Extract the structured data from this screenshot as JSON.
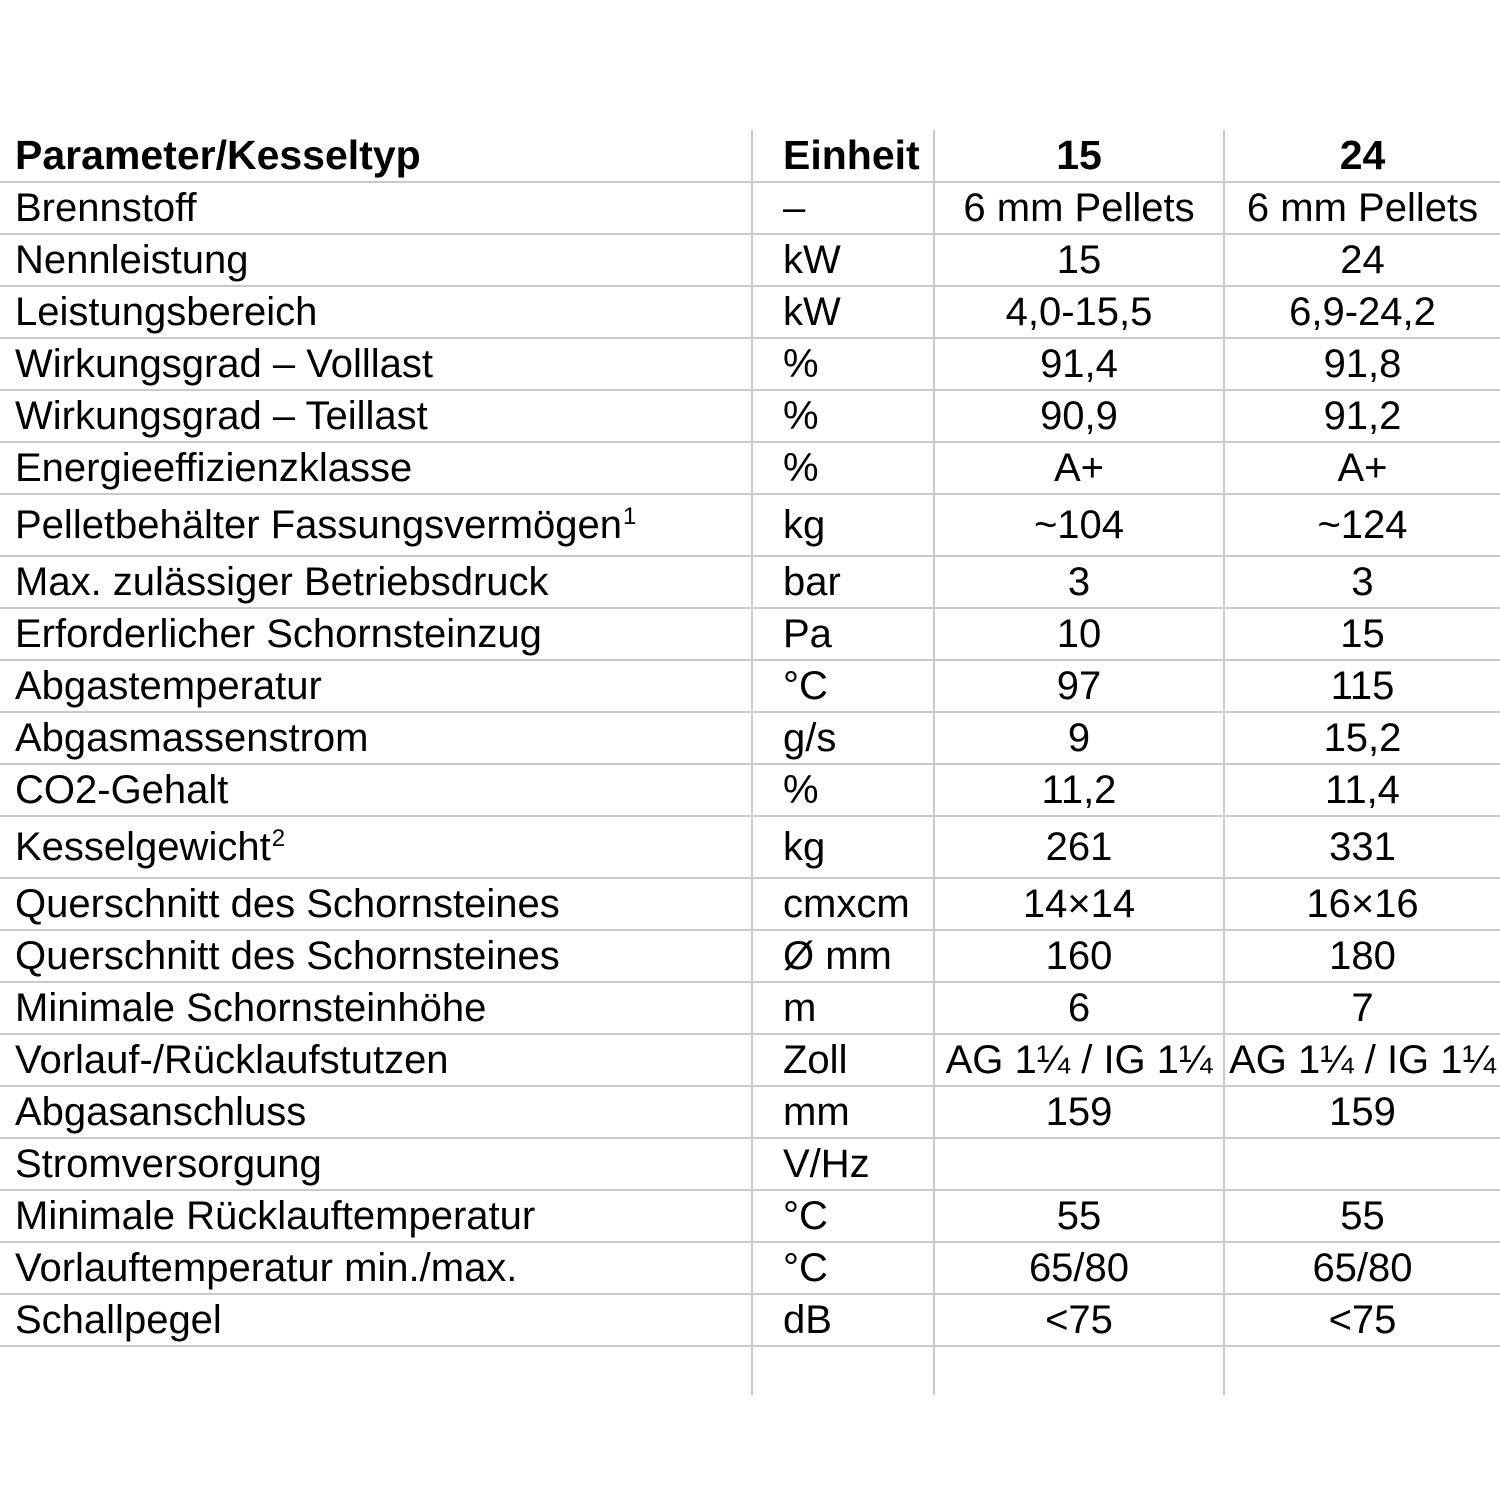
{
  "table": {
    "header": {
      "parameter": "Parameter/Kesseltyp",
      "unit": "Einheit",
      "model_15": "15",
      "model_24": "24"
    },
    "rows": [
      {
        "label": "Brennstoff",
        "sup": "",
        "unit": "–",
        "v15": "6 mm Pellets",
        "v24": "6 mm Pellets",
        "tall": false
      },
      {
        "label": "Nennleistung",
        "sup": "",
        "unit": "kW",
        "v15": "15",
        "v24": "24",
        "tall": false
      },
      {
        "label": "Leistungsbereich",
        "sup": "",
        "unit": "kW",
        "v15": "4,0-15,5",
        "v24": "6,9-24,2",
        "tall": false
      },
      {
        "label": "Wirkungsgrad – Volllast",
        "sup": "",
        "unit": "%",
        "v15": "91,4",
        "v24": "91,8",
        "tall": false
      },
      {
        "label": "Wirkungsgrad – Teillast",
        "sup": "",
        "unit": "%",
        "v15": "90,9",
        "v24": "91,2",
        "tall": false
      },
      {
        "label": "Energieeffizienzklasse",
        "sup": "",
        "unit": "%",
        "v15": "A+",
        "v24": "A+",
        "tall": false
      },
      {
        "label": "Pelletbehälter Fassungsvermögen",
        "sup": "1",
        "unit": "kg",
        "v15": "~104",
        "v24": "~124",
        "tall": true
      },
      {
        "label": "Max. zulässiger Betriebsdruck",
        "sup": "",
        "unit": "bar",
        "v15": "3",
        "v24": "3",
        "tall": false
      },
      {
        "label": "Erforderlicher Schornsteinzug",
        "sup": "",
        "unit": "Pa",
        "v15": "10",
        "v24": "15",
        "tall": false
      },
      {
        "label": "Abgastemperatur",
        "sup": "",
        "unit": "°C",
        "v15": "97",
        "v24": "115",
        "tall": false
      },
      {
        "label": "Abgasmassenstrom",
        "sup": "",
        "unit": "g/s",
        "v15": "9",
        "v24": "15,2",
        "tall": false
      },
      {
        "label": "CO2-Gehalt",
        "sup": "",
        "unit": "%",
        "v15": "11,2",
        "v24": "11,4",
        "tall": false
      },
      {
        "label": "Kesselgewicht",
        "sup": "2",
        "unit": "kg",
        "v15": "261",
        "v24": "331",
        "tall": true
      },
      {
        "label": "Querschnitt des Schornsteines",
        "sup": "",
        "unit": "cmxcm",
        "v15": "14×14",
        "v24": "16×16",
        "tall": false
      },
      {
        "label": "Querschnitt des Schornsteines",
        "sup": "",
        "unit": "Ø mm",
        "v15": "160",
        "v24": "180",
        "tall": false
      },
      {
        "label": "Minimale Schornsteinhöhe",
        "sup": "",
        "unit": "m",
        "v15": "6",
        "v24": "7",
        "tall": false
      },
      {
        "label": "Vorlauf-/Rücklaufstutzen",
        "sup": "",
        "unit": "Zoll",
        "v15": "AG 1¼ / IG 1¼",
        "v24": "AG 1¼ / IG 1¼",
        "tall": false
      },
      {
        "label": "Abgasanschluss",
        "sup": "",
        "unit": "mm",
        "v15": "159",
        "v24": "159",
        "tall": false
      },
      {
        "label": "Stromversorgung",
        "sup": "",
        "unit": "V/Hz",
        "v15": "",
        "v24": "",
        "tall": false
      },
      {
        "label": "Minimale Rücklauftemperatur",
        "sup": "",
        "unit": "°C",
        "v15": "55",
        "v24": "55",
        "tall": false
      },
      {
        "label": "Vorlauftemperatur min./max.",
        "sup": "",
        "unit": "°C",
        "v15": "65/80",
        "v24": "65/80",
        "tall": false
      },
      {
        "label": "Schallpegel",
        "sup": "",
        "unit": "dB",
        "v15": "<75",
        "v24": "<75",
        "tall": false
      }
    ]
  },
  "colors": {
    "grid_line": "#c6cacd",
    "text": "#000000",
    "background": "#ffffff"
  }
}
